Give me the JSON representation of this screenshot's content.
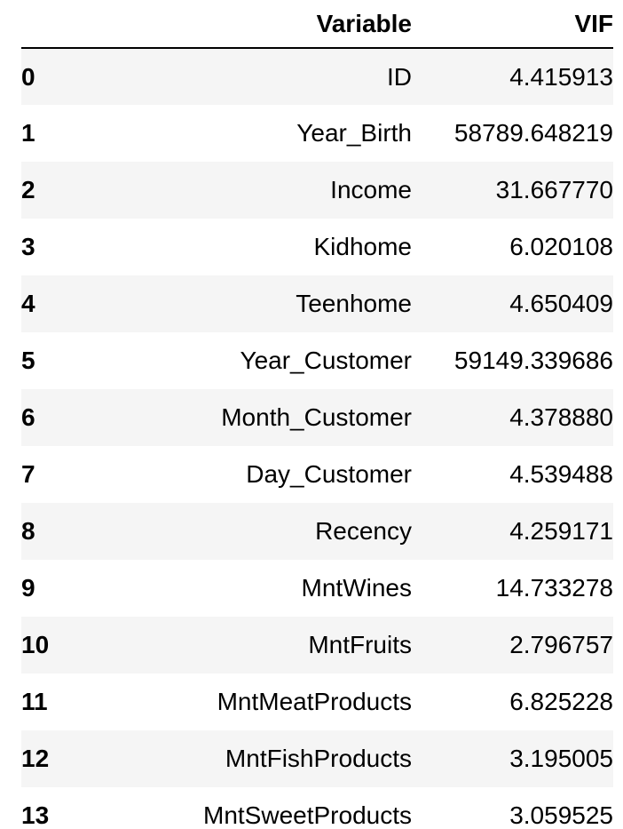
{
  "table": {
    "columns": [
      "Variable",
      "VIF"
    ],
    "rows": [
      {
        "index": "0",
        "variable": "ID",
        "vif": "4.415913"
      },
      {
        "index": "1",
        "variable": "Year_Birth",
        "vif": "58789.648219"
      },
      {
        "index": "2",
        "variable": "Income",
        "vif": "31.667770"
      },
      {
        "index": "3",
        "variable": "Kidhome",
        "vif": "6.020108"
      },
      {
        "index": "4",
        "variable": "Teenhome",
        "vif": "4.650409"
      },
      {
        "index": "5",
        "variable": "Year_Customer",
        "vif": "59149.339686"
      },
      {
        "index": "6",
        "variable": "Month_Customer",
        "vif": "4.378880"
      },
      {
        "index": "7",
        "variable": "Day_Customer",
        "vif": "4.539488"
      },
      {
        "index": "8",
        "variable": "Recency",
        "vif": "4.259171"
      },
      {
        "index": "9",
        "variable": "MntWines",
        "vif": "14.733278"
      },
      {
        "index": "10",
        "variable": "MntFruits",
        "vif": "2.796757"
      },
      {
        "index": "11",
        "variable": "MntMeatProducts",
        "vif": "6.825228"
      },
      {
        "index": "12",
        "variable": "MntFishProducts",
        "vif": "3.195005"
      },
      {
        "index": "13",
        "variable": "MntSweetProducts",
        "vif": "3.059525"
      }
    ]
  }
}
